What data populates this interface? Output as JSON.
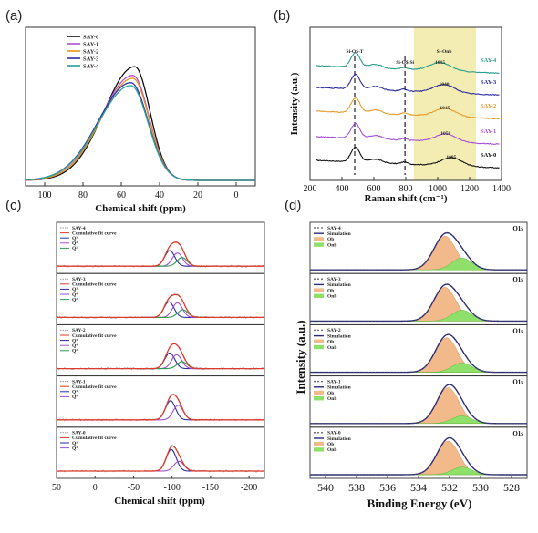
{
  "panels": {
    "a": {
      "label": "(a)",
      "chart_data": {
        "type": "line",
        "xlabel": "Chemical shift (ppm)",
        "ylabel": "",
        "xlim": [
          110,
          -10
        ],
        "xticks": [
          100,
          80,
          60,
          40,
          20,
          0
        ],
        "legend_position": "top-left",
        "series": [
          {
            "name": "SAY-0",
            "color": "#111111",
            "center": 53,
            "sigma_left": 8,
            "sigma_right": 16,
            "height": 0.78
          },
          {
            "name": "SAY-1",
            "color": "#b04fd6",
            "center": 54,
            "sigma_left": 8.5,
            "sigma_right": 16.5,
            "height": 0.72
          },
          {
            "name": "SAY-2",
            "color": "#e8961a",
            "center": 54,
            "sigma_left": 8.5,
            "sigma_right": 16.5,
            "height": 0.7
          },
          {
            "name": "SAY-3",
            "color": "#2f2fa8",
            "center": 55,
            "sigma_left": 9,
            "sigma_right": 17,
            "height": 0.67
          },
          {
            "name": "SAY-4",
            "color": "#2aa198",
            "center": 55,
            "sigma_left": 9,
            "sigma_right": 17,
            "height": 0.65
          }
        ]
      }
    },
    "b": {
      "label": "(b)",
      "chart_data": {
        "type": "line",
        "xlabel": "Raman shift (cm⁻¹)",
        "ylabel": "Intensity (a.u.)",
        "xlim": [
          200,
          1400
        ],
        "xticks": [
          200,
          400,
          600,
          800,
          1000,
          1200,
          1400
        ],
        "highlight_range": [
          850,
          1240
        ],
        "highlight_color": "#f3edb3",
        "dashed_lines": [
          480,
          795
        ],
        "annotations": [
          {
            "text": "Si-O$-T",
            "x": 480
          },
          {
            "text": "Si-O$-Si",
            "x": 795
          },
          {
            "text": "Si-Onb",
            "x": 1040
          }
        ],
        "series": [
          {
            "name": "SAY-0",
            "color": "#111111",
            "peak": 1085
          },
          {
            "name": "SAY-1",
            "color": "#a24ed8",
            "peak": 1050
          },
          {
            "name": "SAY-2",
            "color": "#e89a2a",
            "peak": 1045
          },
          {
            "name": "SAY-3",
            "color": "#2a2a9c",
            "peak": 1040
          },
          {
            "name": "SAY-4",
            "color": "#2a9c8e",
            "peak": 1015
          }
        ]
      }
    },
    "c": {
      "label": "(c)",
      "chart_data": {
        "type": "line",
        "xlabel": "Chemical shift (ppm)",
        "xlim": [
          50,
          -220
        ],
        "xticks": [
          50,
          0,
          -50,
          -100,
          -150,
          -200
        ],
        "rows": [
          {
            "sample": "SAY-4",
            "legend": [
              "SAY-4",
              "Cumulative fit curve",
              "Q³",
              "Q⁴",
              "Q²"
            ],
            "components": [
              {
                "c": -97,
                "h": 0.45,
                "color": "#2a2a9c"
              },
              {
                "c": -107,
                "h": 0.38,
                "color": "#a24ed8"
              },
              {
                "c": -113,
                "h": 0.25,
                "color": "#2a9c4e"
              }
            ]
          },
          {
            "sample": "SAY-3",
            "legend": [
              "SAY-3",
              "Cumulative fit curve",
              "Q³",
              "Q⁴",
              "Q²"
            ],
            "components": [
              {
                "c": -96,
                "h": 0.45,
                "color": "#2a2a9c"
              },
              {
                "c": -107,
                "h": 0.42,
                "color": "#a24ed8"
              },
              {
                "c": -114,
                "h": 0.22,
                "color": "#2a9c4e"
              }
            ]
          },
          {
            "sample": "SAY-2",
            "legend": [
              "SAY-2",
              "Cumulative fit curve",
              "Q³",
              "Q⁴",
              "Q²"
            ],
            "components": [
              {
                "c": -97,
                "h": 0.45,
                "color": "#2a2a9c"
              },
              {
                "c": -106,
                "h": 0.4,
                "color": "#a24ed8"
              },
              {
                "c": -113,
                "h": 0.2,
                "color": "#2a9c4e"
              }
            ]
          },
          {
            "sample": "SAY-1",
            "legend": [
              "SAY-1",
              "Cumulative fit curve",
              "Q³",
              "Q⁴"
            ],
            "components": [
              {
                "c": -98,
                "h": 0.55,
                "color": "#2a2a9c"
              },
              {
                "c": -108,
                "h": 0.42,
                "color": "#a24ed8"
              }
            ]
          },
          {
            "sample": "SAY-0",
            "legend": [
              "SAY-0",
              "Cumulative fit curve",
              "Q³",
              "Q⁴"
            ],
            "components": [
              {
                "c": -99,
                "h": 0.62,
                "color": "#2a2a9c"
              },
              {
                "c": -109,
                "h": 0.28,
                "color": "#a24ed8"
              }
            ]
          }
        ]
      }
    },
    "d": {
      "label": "(d)",
      "chart_data": {
        "type": "area",
        "xlabel": "Binding Energy (eV)",
        "ylabel": "Intensity (a.u.)",
        "xlim": [
          541,
          527
        ],
        "xticks": [
          540,
          538,
          536,
          534,
          532,
          530,
          528
        ],
        "region_label": "O1s",
        "rows": [
          {
            "sample": "SAY-4",
            "legend": [
              "SAY-4",
              "Simulation",
              "Ob",
              "Onb"
            ],
            "ob": {
              "c": 532.3,
              "h": 0.8
            },
            "onb": {
              "c": 531.2,
              "h": 0.28
            }
          },
          {
            "sample": "SAY-3",
            "legend": [
              "SAY-3",
              "Simulation",
              "Ob",
              "Onb"
            ],
            "ob": {
              "c": 532.3,
              "h": 0.8
            },
            "onb": {
              "c": 531.2,
              "h": 0.26
            }
          },
          {
            "sample": "SAY-2",
            "legend": [
              "SAY-2",
              "Simulation",
              "Ob",
              "Onb"
            ],
            "ob": {
              "c": 532.2,
              "h": 0.82
            },
            "onb": {
              "c": 531.2,
              "h": 0.22
            }
          },
          {
            "sample": "SAY-1",
            "legend": [
              "SAY-1",
              "Simulation",
              "Ob",
              "Onb"
            ],
            "ob": {
              "c": 532.1,
              "h": 0.85
            },
            "onb": {
              "c": 531.2,
              "h": 0.18
            }
          },
          {
            "sample": "SAY-0",
            "legend": [
              "SAY-0",
              "Simulation",
              "Ob",
              "Onb"
            ],
            "ob": {
              "c": 532.1,
              "h": 0.8
            },
            "onb": {
              "c": 531.2,
              "h": 0.18
            }
          }
        ]
      }
    }
  }
}
